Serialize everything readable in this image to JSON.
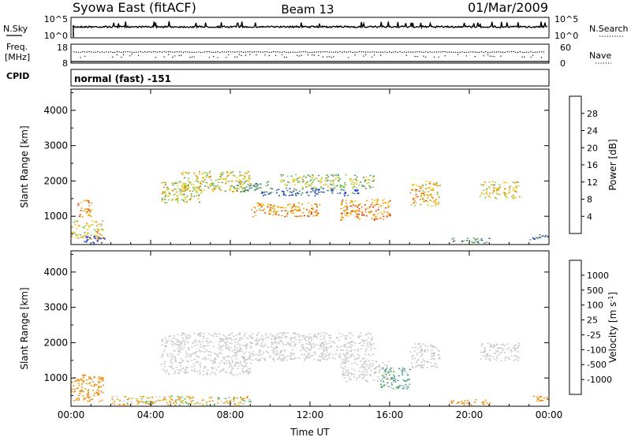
{
  "header": {
    "station": "Syowa East (fitACF)",
    "beam": "Beam 13",
    "date": "01/Mar/2009"
  },
  "noise_panel": {
    "left_label": "N.Sky",
    "right_label": "N.Search",
    "left_ticks": [
      "10^5",
      "10^0"
    ],
    "right_ticks": [
      "10^5",
      "10^0"
    ]
  },
  "freq_panel": {
    "label_line1": "Freq.",
    "label_line2": "[MHz]",
    "right_label": "Nave",
    "left_ticks": [
      "18",
      "8"
    ],
    "right_ticks": [
      "60",
      "0"
    ]
  },
  "cpid": {
    "label": "CPID",
    "value": "normal (fast) -151"
  },
  "colors": {
    "power_scale": [
      "#1a28ff",
      "#234ca0",
      "#3f7a78",
      "#4d9b5e",
      "#8cc850",
      "#f2c000",
      "#f18b00",
      "#e83a00",
      "#ff0000"
    ],
    "velocity_scale": [
      "#1a3ccc",
      "#2b5fb3",
      "#3a8c8c",
      "#44b84a",
      "#c8c8c8",
      "#d8b000",
      "#f08a00",
      "#f05000",
      "#ff0000"
    ]
  },
  "chart_data": [
    {
      "type": "heatmap",
      "name": "power",
      "ylabel": "Slant Range [km]",
      "y_ticks": [
        1000,
        2000,
        3000,
        4000
      ],
      "ylim": [
        200,
        4600
      ],
      "x_ticks": [
        "00:00",
        "04:00",
        "08:00",
        "12:00",
        "16:00",
        "20:00",
        "00:00"
      ],
      "xlim_hours": [
        0,
        24
      ],
      "colorbar": {
        "label": "Power [dB]",
        "ticks": [
          "28",
          "24",
          "20",
          "16",
          "12",
          "8",
          "4"
        ],
        "range": [
          0,
          30
        ]
      },
      "regions": [
        {
          "t0": 0.0,
          "t1": 1.6,
          "r0": 350,
          "r1": 900,
          "value": 12
        },
        {
          "t0": 0.6,
          "t1": 1.7,
          "r0": 250,
          "r1": 450,
          "value": 27
        },
        {
          "t0": 0.3,
          "t1": 1.0,
          "r0": 1000,
          "r1": 1500,
          "value": 9
        },
        {
          "t0": 4.5,
          "t1": 6.5,
          "r0": 1400,
          "r1": 2000,
          "value": 14
        },
        {
          "t0": 5.5,
          "t1": 9.0,
          "r0": 1700,
          "r1": 2300,
          "value": 13
        },
        {
          "t0": 8.0,
          "t1": 10.0,
          "r0": 1700,
          "r1": 2000,
          "value": 19
        },
        {
          "t0": 9.5,
          "t1": 14.5,
          "r0": 1600,
          "r1": 1800,
          "value": 24
        },
        {
          "t0": 10.5,
          "t1": 15.2,
          "r0": 1800,
          "r1": 2200,
          "value": 15
        },
        {
          "t0": 9.0,
          "t1": 12.5,
          "r0": 1000,
          "r1": 1400,
          "value": 9
        },
        {
          "t0": 13.5,
          "t1": 16.0,
          "r0": 900,
          "r1": 1500,
          "value": 8
        },
        {
          "t0": 17.0,
          "t1": 18.5,
          "r0": 1300,
          "r1": 2000,
          "value": 10
        },
        {
          "t0": 20.5,
          "t1": 22.5,
          "r0": 1500,
          "r1": 2000,
          "value": 12
        },
        {
          "t0": 19.0,
          "t1": 21.0,
          "r0": 250,
          "r1": 400,
          "value": 20
        },
        {
          "t0": 23.0,
          "t1": 24.0,
          "r0": 350,
          "r1": 500,
          "value": 22
        }
      ]
    },
    {
      "type": "heatmap",
      "name": "velocity",
      "ylabel": "Slant Range [km]",
      "y_ticks": [
        1000,
        2000,
        3000,
        4000
      ],
      "ylim": [
        200,
        4600
      ],
      "x_ticks": [
        "00:00",
        "04:00",
        "08:00",
        "12:00",
        "16:00",
        "20:00",
        "00:00"
      ],
      "xlabel": "Time UT",
      "xlim_hours": [
        0,
        24
      ],
      "colorbar": {
        "label": "Velocity [m s",
        "label_exp": "-1",
        "label_close": "]",
        "ticks": [
          "1000",
          "500",
          "100",
          "25",
          "-25",
          "-100",
          "-500",
          "-1000"
        ]
      },
      "regions": [
        {
          "t0": 0.0,
          "t1": 1.6,
          "r0": 350,
          "r1": 1100,
          "value": -300
        },
        {
          "t0": 4.5,
          "t1": 9.0,
          "r0": 1100,
          "r1": 2300,
          "value": 0
        },
        {
          "t0": 9.0,
          "t1": 15.2,
          "r0": 1500,
          "r1": 2300,
          "value": 0
        },
        {
          "t0": 13.5,
          "t1": 16.0,
          "r0": 900,
          "r1": 1500,
          "value": 0
        },
        {
          "t0": 17.0,
          "t1": 18.5,
          "r0": 1300,
          "r1": 2000,
          "value": 0
        },
        {
          "t0": 20.5,
          "t1": 22.5,
          "r0": 1500,
          "r1": 2000,
          "value": 0
        },
        {
          "t0": 15.5,
          "t1": 17.0,
          "r0": 700,
          "r1": 1300,
          "value": 120
        },
        {
          "t0": 2.0,
          "t1": 9.0,
          "r0": 250,
          "r1": 500,
          "value": -60
        },
        {
          "t0": 19.0,
          "t1": 21.0,
          "r0": 250,
          "r1": 400,
          "value": -250
        },
        {
          "t0": 23.0,
          "t1": 24.0,
          "r0": 350,
          "r1": 500,
          "value": -400
        }
      ]
    }
  ]
}
